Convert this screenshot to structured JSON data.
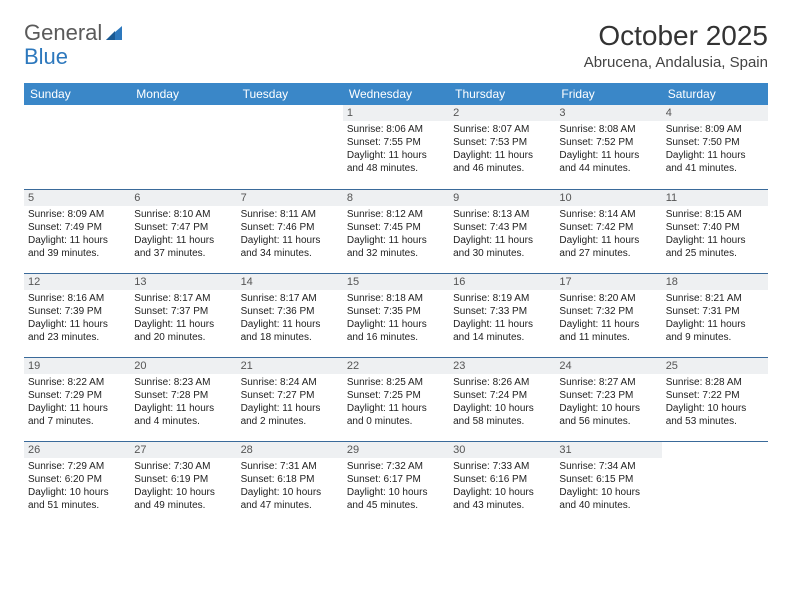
{
  "logo": {
    "text1": "General",
    "text2": "Blue"
  },
  "title": "October 2025",
  "location": "Abrucena, Andalusia, Spain",
  "colors": {
    "header_bg": "#3a87c8",
    "header_text": "#ffffff",
    "row_border": "#3a6a9a",
    "daynum_bg": "#eef0f2",
    "daynum_text": "#555555",
    "body_text": "#222222",
    "logo_gray": "#5a5a5a",
    "logo_blue": "#2d78bd"
  },
  "weekdays": [
    "Sunday",
    "Monday",
    "Tuesday",
    "Wednesday",
    "Thursday",
    "Friday",
    "Saturday"
  ],
  "weeks": [
    [
      {
        "empty": true
      },
      {
        "empty": true
      },
      {
        "empty": true
      },
      {
        "day": "1",
        "sunrise": "Sunrise: 8:06 AM",
        "sunset": "Sunset: 7:55 PM",
        "d1": "Daylight: 11 hours",
        "d2": "and 48 minutes."
      },
      {
        "day": "2",
        "sunrise": "Sunrise: 8:07 AM",
        "sunset": "Sunset: 7:53 PM",
        "d1": "Daylight: 11 hours",
        "d2": "and 46 minutes."
      },
      {
        "day": "3",
        "sunrise": "Sunrise: 8:08 AM",
        "sunset": "Sunset: 7:52 PM",
        "d1": "Daylight: 11 hours",
        "d2": "and 44 minutes."
      },
      {
        "day": "4",
        "sunrise": "Sunrise: 8:09 AM",
        "sunset": "Sunset: 7:50 PM",
        "d1": "Daylight: 11 hours",
        "d2": "and 41 minutes."
      }
    ],
    [
      {
        "day": "5",
        "sunrise": "Sunrise: 8:09 AM",
        "sunset": "Sunset: 7:49 PM",
        "d1": "Daylight: 11 hours",
        "d2": "and 39 minutes."
      },
      {
        "day": "6",
        "sunrise": "Sunrise: 8:10 AM",
        "sunset": "Sunset: 7:47 PM",
        "d1": "Daylight: 11 hours",
        "d2": "and 37 minutes."
      },
      {
        "day": "7",
        "sunrise": "Sunrise: 8:11 AM",
        "sunset": "Sunset: 7:46 PM",
        "d1": "Daylight: 11 hours",
        "d2": "and 34 minutes."
      },
      {
        "day": "8",
        "sunrise": "Sunrise: 8:12 AM",
        "sunset": "Sunset: 7:45 PM",
        "d1": "Daylight: 11 hours",
        "d2": "and 32 minutes."
      },
      {
        "day": "9",
        "sunrise": "Sunrise: 8:13 AM",
        "sunset": "Sunset: 7:43 PM",
        "d1": "Daylight: 11 hours",
        "d2": "and 30 minutes."
      },
      {
        "day": "10",
        "sunrise": "Sunrise: 8:14 AM",
        "sunset": "Sunset: 7:42 PM",
        "d1": "Daylight: 11 hours",
        "d2": "and 27 minutes."
      },
      {
        "day": "11",
        "sunrise": "Sunrise: 8:15 AM",
        "sunset": "Sunset: 7:40 PM",
        "d1": "Daylight: 11 hours",
        "d2": "and 25 minutes."
      }
    ],
    [
      {
        "day": "12",
        "sunrise": "Sunrise: 8:16 AM",
        "sunset": "Sunset: 7:39 PM",
        "d1": "Daylight: 11 hours",
        "d2": "and 23 minutes."
      },
      {
        "day": "13",
        "sunrise": "Sunrise: 8:17 AM",
        "sunset": "Sunset: 7:37 PM",
        "d1": "Daylight: 11 hours",
        "d2": "and 20 minutes."
      },
      {
        "day": "14",
        "sunrise": "Sunrise: 8:17 AM",
        "sunset": "Sunset: 7:36 PM",
        "d1": "Daylight: 11 hours",
        "d2": "and 18 minutes."
      },
      {
        "day": "15",
        "sunrise": "Sunrise: 8:18 AM",
        "sunset": "Sunset: 7:35 PM",
        "d1": "Daylight: 11 hours",
        "d2": "and 16 minutes."
      },
      {
        "day": "16",
        "sunrise": "Sunrise: 8:19 AM",
        "sunset": "Sunset: 7:33 PM",
        "d1": "Daylight: 11 hours",
        "d2": "and 14 minutes."
      },
      {
        "day": "17",
        "sunrise": "Sunrise: 8:20 AM",
        "sunset": "Sunset: 7:32 PM",
        "d1": "Daylight: 11 hours",
        "d2": "and 11 minutes."
      },
      {
        "day": "18",
        "sunrise": "Sunrise: 8:21 AM",
        "sunset": "Sunset: 7:31 PM",
        "d1": "Daylight: 11 hours",
        "d2": "and 9 minutes."
      }
    ],
    [
      {
        "day": "19",
        "sunrise": "Sunrise: 8:22 AM",
        "sunset": "Sunset: 7:29 PM",
        "d1": "Daylight: 11 hours",
        "d2": "and 7 minutes."
      },
      {
        "day": "20",
        "sunrise": "Sunrise: 8:23 AM",
        "sunset": "Sunset: 7:28 PM",
        "d1": "Daylight: 11 hours",
        "d2": "and 4 minutes."
      },
      {
        "day": "21",
        "sunrise": "Sunrise: 8:24 AM",
        "sunset": "Sunset: 7:27 PM",
        "d1": "Daylight: 11 hours",
        "d2": "and 2 minutes."
      },
      {
        "day": "22",
        "sunrise": "Sunrise: 8:25 AM",
        "sunset": "Sunset: 7:25 PM",
        "d1": "Daylight: 11 hours",
        "d2": "and 0 minutes."
      },
      {
        "day": "23",
        "sunrise": "Sunrise: 8:26 AM",
        "sunset": "Sunset: 7:24 PM",
        "d1": "Daylight: 10 hours",
        "d2": "and 58 minutes."
      },
      {
        "day": "24",
        "sunrise": "Sunrise: 8:27 AM",
        "sunset": "Sunset: 7:23 PM",
        "d1": "Daylight: 10 hours",
        "d2": "and 56 minutes."
      },
      {
        "day": "25",
        "sunrise": "Sunrise: 8:28 AM",
        "sunset": "Sunset: 7:22 PM",
        "d1": "Daylight: 10 hours",
        "d2": "and 53 minutes."
      }
    ],
    [
      {
        "day": "26",
        "sunrise": "Sunrise: 7:29 AM",
        "sunset": "Sunset: 6:20 PM",
        "d1": "Daylight: 10 hours",
        "d2": "and 51 minutes."
      },
      {
        "day": "27",
        "sunrise": "Sunrise: 7:30 AM",
        "sunset": "Sunset: 6:19 PM",
        "d1": "Daylight: 10 hours",
        "d2": "and 49 minutes."
      },
      {
        "day": "28",
        "sunrise": "Sunrise: 7:31 AM",
        "sunset": "Sunset: 6:18 PM",
        "d1": "Daylight: 10 hours",
        "d2": "and 47 minutes."
      },
      {
        "day": "29",
        "sunrise": "Sunrise: 7:32 AM",
        "sunset": "Sunset: 6:17 PM",
        "d1": "Daylight: 10 hours",
        "d2": "and 45 minutes."
      },
      {
        "day": "30",
        "sunrise": "Sunrise: 7:33 AM",
        "sunset": "Sunset: 6:16 PM",
        "d1": "Daylight: 10 hours",
        "d2": "and 43 minutes."
      },
      {
        "day": "31",
        "sunrise": "Sunrise: 7:34 AM",
        "sunset": "Sunset: 6:15 PM",
        "d1": "Daylight: 10 hours",
        "d2": "and 40 minutes."
      },
      {
        "empty": true
      }
    ]
  ]
}
